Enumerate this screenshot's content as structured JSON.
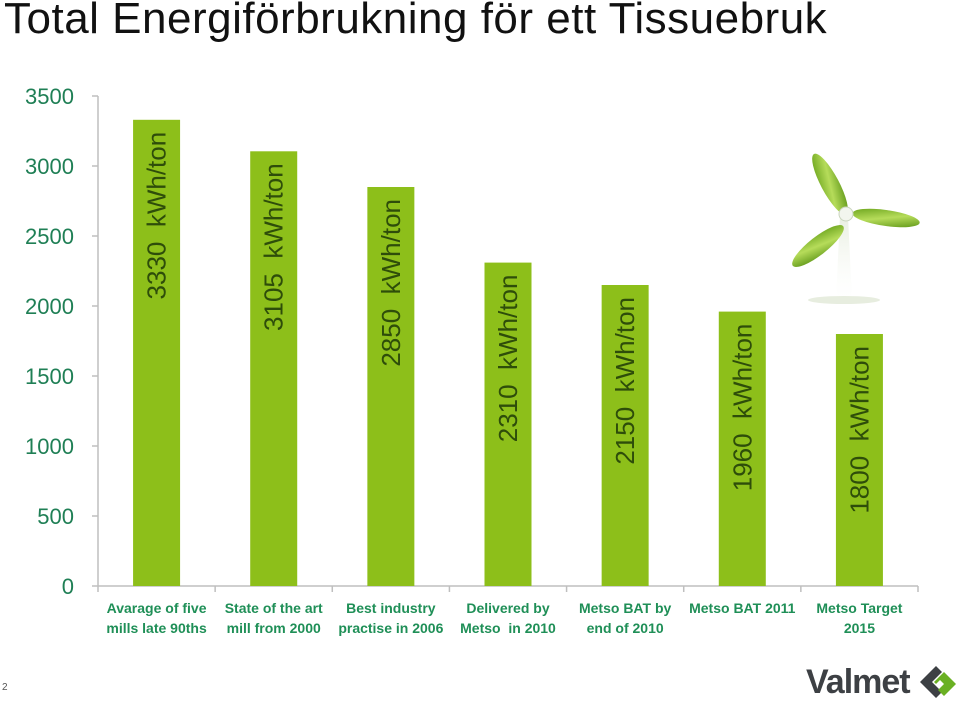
{
  "title": "Total Energiförbrukning för ett Tissuebruk",
  "page_number": "2",
  "logo_text": "Valmet",
  "colors": {
    "bar": "#8dbf1a",
    "bar_label": "#2e4d0a",
    "category_label": "#1f8f57",
    "axis": "#bfbfbf",
    "tick": "#1f7f55"
  },
  "chart_data": {
    "type": "bar",
    "ylim": [
      0,
      3500
    ],
    "yticks": [
      0,
      500,
      1000,
      1500,
      2000,
      2500,
      3000,
      3500
    ],
    "categories": [
      [
        "Avarage of five",
        "mills late 90ths"
      ],
      [
        "State of the art",
        "mill from 2000"
      ],
      [
        "Best industry",
        "practise in 2006"
      ],
      [
        "Delivered by",
        "Metso  in 2010"
      ],
      [
        "Metso BAT by",
        "end of 2010"
      ],
      [
        "Metso BAT 2011"
      ],
      [
        "Metso Target",
        "2015"
      ]
    ],
    "values": [
      3330,
      3105,
      2850,
      2310,
      2150,
      1960,
      1800
    ],
    "data_labels": [
      "3330  kWh/ton",
      "3105  kWh/ton",
      "2850  kWh/ton",
      "2310  kWh/ton",
      "2150  kWh/ton",
      "1960  kWh/ton",
      "1800  kWh/ton"
    ]
  }
}
